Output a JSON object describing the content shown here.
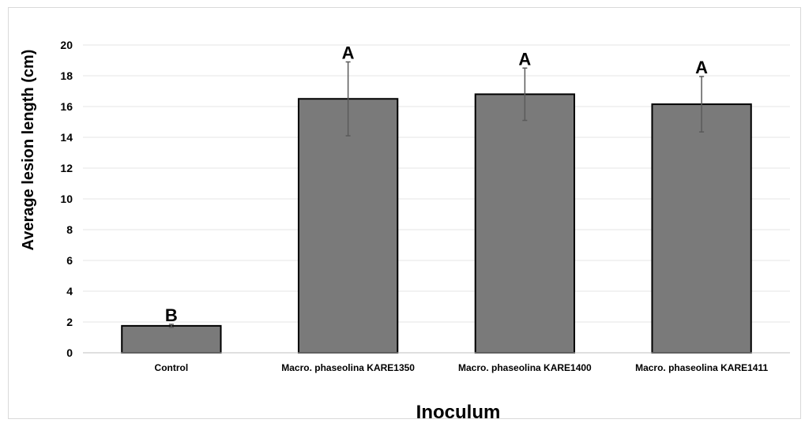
{
  "chart_data": {
    "type": "bar",
    "title": "",
    "xlabel": "Inoculum",
    "ylabel": "Average lesion length (cm)",
    "ylim": [
      0,
      20
    ],
    "yticks": [
      0,
      2,
      4,
      6,
      8,
      10,
      12,
      14,
      16,
      18,
      20
    ],
    "grid": true,
    "legend": "none",
    "categories": [
      "Control",
      "Macro. phaseolina  KARE1350",
      "Macro. phaseolina  KARE1400",
      "Macro. phaseolina  KARE1411"
    ],
    "values": [
      1.75,
      16.5,
      16.8,
      16.15
    ],
    "error": [
      0.1,
      2.4,
      1.7,
      1.8
    ],
    "significance_labels": [
      "B",
      "A",
      "A",
      "A"
    ],
    "colors": {
      "bar": "#7a7a7a",
      "bar_edge": "#000000",
      "grid": "#e6e6e6",
      "error_bar": "#5a5a5a"
    }
  }
}
